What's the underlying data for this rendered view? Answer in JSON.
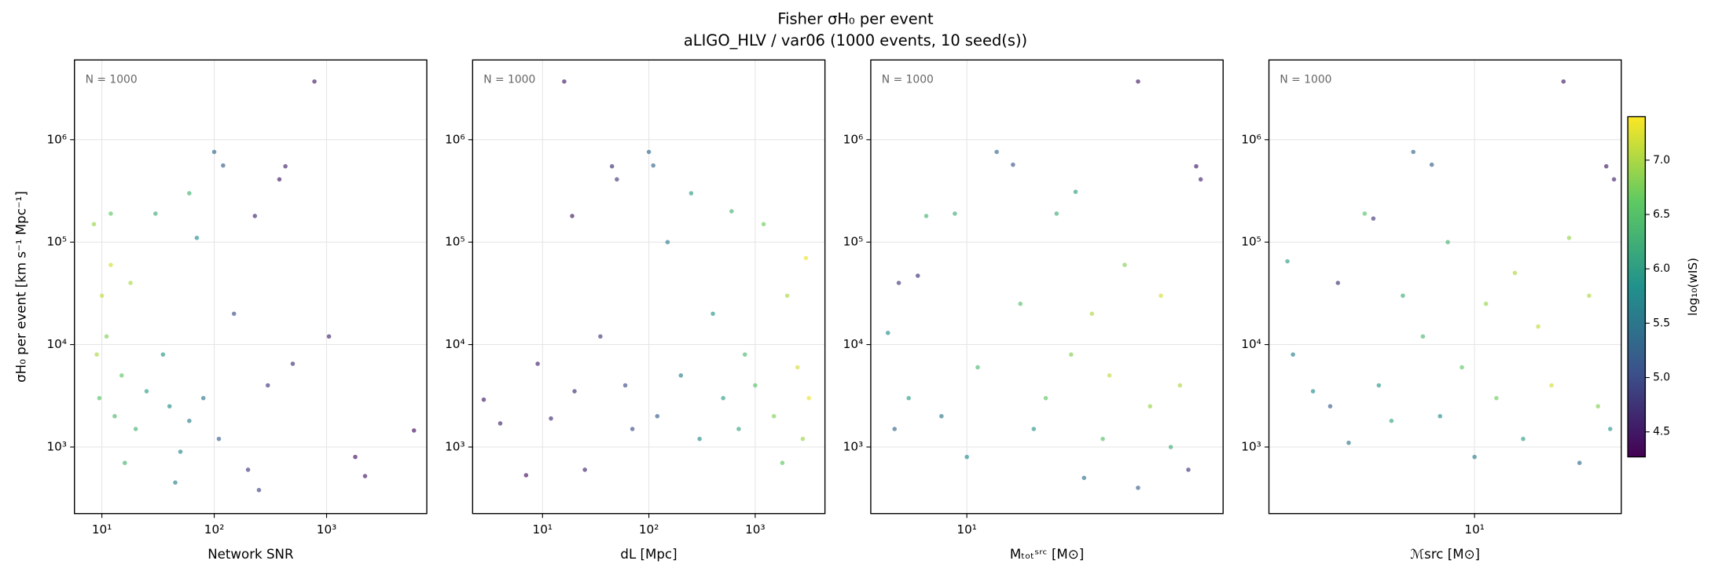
{
  "figure": {
    "title": "Fisher σH₀ per event",
    "subtitle": "aLIGO_HLV / var06  (1000 events, 10 seed(s))"
  },
  "chart_data": [
    {
      "type": "scatter",
      "xlabel": "Network SNR",
      "ylabel": "σH₀ per event [km s⁻¹ Mpc⁻¹]",
      "annotation": "N = 1000",
      "xlog": true,
      "ylog": true,
      "grid": true,
      "colormap": "viridis",
      "xlim": [
        5.7,
        7800
      ],
      "xticks": [
        {
          "value": 10,
          "label": "10¹"
        },
        {
          "value": 100,
          "label": "10²"
        },
        {
          "value": 1000,
          "label": "10³"
        }
      ],
      "ylim": [
        224,
        6000000
      ],
      "yticks": [
        {
          "value": 1000,
          "label": "10³"
        },
        {
          "value": 10000,
          "label": "10⁴"
        },
        {
          "value": 100000,
          "label": "10⁵"
        },
        {
          "value": 1000000,
          "label": "10⁶"
        }
      ],
      "series": [
        {
          "x": [
            8.5,
            10,
            12,
            9,
            11,
            9.5,
            13,
            15,
            18,
            12,
            20,
            25,
            30,
            35,
            40,
            50,
            60,
            70,
            80,
            100,
            110,
            120,
            150,
            200,
            230,
            300,
            380,
            430,
            500,
            780,
            1050,
            1800,
            2200,
            6000,
            16,
            45,
            60,
            250
          ],
          "values": [
            150000,
            30000,
            60000,
            8000,
            12000,
            3000,
            2000,
            5000,
            40000,
            190000,
            1500,
            3500,
            190000,
            8000,
            2500,
            900,
            300000,
            110000,
            3000,
            760000,
            1200,
            560000,
            20000,
            600,
            180000,
            4000,
            410000,
            550000,
            6500,
            3700000,
            12000,
            800,
            520,
            1450,
            700,
            450,
            1800,
            380
          ],
          "color_values": [
            6.9,
            7.1,
            7.2,
            7.0,
            6.8,
            6.5,
            6.4,
            6.6,
            7.0,
            6.6,
            6.3,
            6.0,
            6.2,
            5.9,
            5.8,
            5.7,
            6.3,
            5.8,
            5.5,
            5.3,
            5.2,
            5.2,
            5.0,
            4.8,
            4.6,
            4.8,
            4.5,
            4.6,
            4.7,
            4.5,
            4.6,
            4.4,
            4.5,
            4.4,
            6.3,
            5.6,
            5.6,
            4.9
          ]
        }
      ]
    },
    {
      "type": "scatter",
      "xlabel": "dL [Mpc]",
      "annotation": "N = 1000",
      "xlog": true,
      "ylog": true,
      "grid": true,
      "colormap": "viridis",
      "xlim": [
        2.2,
        4530
      ],
      "xticks": [
        {
          "value": 10,
          "label": "10¹"
        },
        {
          "value": 100,
          "label": "10²"
        },
        {
          "value": 1000,
          "label": "10³"
        }
      ],
      "ylim": [
        224,
        6000000
      ],
      "yticks": [
        {
          "value": 1000,
          "label": "10³"
        },
        {
          "value": 10000,
          "label": "10⁴"
        },
        {
          "value": 100000,
          "label": "10⁵"
        },
        {
          "value": 1000000,
          "label": "10⁶"
        }
      ],
      "series": [
        {
          "x": [
            2.8,
            4,
            7,
            9,
            12,
            16,
            19,
            20,
            25,
            35,
            45,
            50,
            60,
            70,
            100,
            110,
            120,
            150,
            200,
            250,
            300,
            400,
            500,
            600,
            700,
            800,
            1000,
            1200,
            1500,
            2000,
            2500,
            3000,
            3200,
            2800,
            1800
          ],
          "values": [
            2900,
            1700,
            530,
            6500,
            1900,
            3700000,
            180000,
            3500,
            600,
            12000,
            550000,
            410000,
            4000,
            1500,
            760000,
            560000,
            2000,
            100000,
            5000,
            300000,
            1200,
            20000,
            3000,
            200000,
            1500,
            8000,
            4000,
            150000,
            2000,
            30000,
            6000,
            70000,
            3000,
            1200,
            700
          ],
          "color_values": [
            4.5,
            4.6,
            4.4,
            4.6,
            4.7,
            4.5,
            4.5,
            4.7,
            4.6,
            4.8,
            4.7,
            4.8,
            5.0,
            5.0,
            5.3,
            5.3,
            5.2,
            5.6,
            5.6,
            6.0,
            5.8,
            5.9,
            6.0,
            6.3,
            6.1,
            6.4,
            6.5,
            6.7,
            6.8,
            7.0,
            7.2,
            7.3,
            7.3,
            6.9,
            6.6
          ]
        }
      ]
    },
    {
      "type": "scatter",
      "xlabel": "Mₜₒₜˢʳᶜ [M⊙]",
      "annotation": "N = 1000",
      "xlog": true,
      "ylog": true,
      "grid": true,
      "colormap": "viridis",
      "xlim": [
        4.3,
        95
      ],
      "xticks": [
        {
          "value": 10,
          "label": "10¹"
        }
      ],
      "ylim": [
        224,
        6000000
      ],
      "yticks": [
        {
          "value": 1000,
          "label": "10³"
        },
        {
          "value": 10000,
          "label": "10⁴"
        },
        {
          "value": 100000,
          "label": "10⁵"
        },
        {
          "value": 1000000,
          "label": "10⁶"
        }
      ],
      "series": [
        {
          "x": [
            5,
            5.3,
            5.5,
            6,
            6.5,
            7,
            8,
            9,
            10,
            11,
            13,
            15,
            16,
            18,
            20,
            22,
            25,
            26,
            28,
            30,
            33,
            35,
            40,
            45,
            45,
            50,
            55,
            60,
            65,
            75,
            78,
            70
          ],
          "values": [
            13000,
            1500,
            40000,
            3000,
            47000,
            180000,
            2000,
            190000,
            800,
            6000,
            760000,
            570000,
            25000,
            1500,
            3000,
            190000,
            8000,
            310000,
            500,
            20000,
            1200,
            5000,
            60000,
            3700000,
            400,
            2500,
            30000,
            1000,
            4000,
            550000,
            410000,
            600
          ],
          "color_values": [
            5.8,
            5.3,
            4.8,
            6.0,
            4.7,
            6.3,
            5.5,
            6.2,
            5.8,
            6.4,
            5.3,
            5.1,
            6.5,
            5.9,
            6.6,
            6.2,
            6.8,
            6.0,
            5.4,
            7.0,
            6.5,
            7.1,
            6.8,
            4.5,
            5.2,
            6.9,
            7.2,
            6.2,
            7.0,
            4.5,
            4.6,
            4.8
          ]
        }
      ]
    },
    {
      "type": "scatter",
      "xlabel": "ℳsrc [M⊙]",
      "annotation": "N = 1000",
      "xlog": true,
      "ylog": true,
      "grid": true,
      "colormap": "viridis",
      "xlim": [
        1.8,
        34
      ],
      "xticks": [
        {
          "value": 10,
          "label": "10¹"
        }
      ],
      "ylim": [
        224,
        6000000
      ],
      "yticks": [
        {
          "value": 1000,
          "label": "10³"
        },
        {
          "value": 10000,
          "label": "10⁴"
        },
        {
          "value": 100000,
          "label": "10⁵"
        },
        {
          "value": 1000000,
          "label": "10⁶"
        }
      ],
      "series": [
        {
          "x": [
            2.1,
            2.2,
            2.6,
            3,
            3.2,
            3.5,
            4,
            4.3,
            4.5,
            5,
            5.5,
            6,
            6.5,
            7,
            7.5,
            8,
            9,
            10,
            11,
            12,
            14,
            15,
            17,
            19,
            21,
            22,
            24,
            26,
            28,
            30,
            32,
            31
          ],
          "values": [
            65000,
            8000,
            3500,
            2500,
            40000,
            1100,
            190000,
            170000,
            4000,
            1800,
            30000,
            760000,
            12000,
            570000,
            2000,
            100000,
            6000,
            800,
            25000,
            3000,
            50000,
            1200,
            15000,
            4000,
            3700000,
            110000,
            700,
            30000,
            2500,
            550000,
            410000,
            1500
          ],
          "color_values": [
            6.0,
            5.6,
            5.8,
            5.2,
            4.7,
            5.5,
            6.5,
            4.8,
            5.9,
            6.1,
            6.2,
            5.3,
            6.4,
            5.2,
            5.8,
            6.3,
            6.6,
            5.6,
            6.9,
            6.7,
            7.0,
            6.0,
            7.1,
            7.2,
            4.5,
            6.9,
            5.4,
            7.0,
            6.8,
            4.5,
            4.6,
            5.9
          ]
        }
      ],
      "colorbar": {
        "label": "log₁₀(wIS)",
        "lim": [
          4.27,
          7.4
        ],
        "ticks": [
          4.5,
          {
            "value": 5,
            "label": "5.0"
          },
          5.5,
          {
            "value": 6,
            "label": "6.0"
          },
          6.5,
          {
            "value": 7,
            "label": "7.0"
          }
        ]
      }
    }
  ]
}
